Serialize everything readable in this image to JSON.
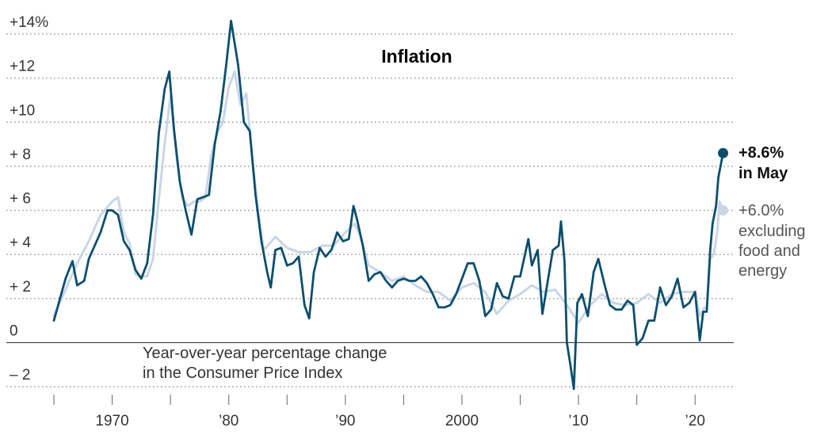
{
  "chart_data": {
    "type": "line",
    "title": "Inflation",
    "subtitle": [
      "Year-over-year percentage change",
      "in the Consumer Price Index"
    ],
    "ylim": [
      -2,
      14
    ],
    "xlim": [
      1965,
      2022.5
    ],
    "y_ticks": [
      {
        "value": 14,
        "label": "+14%"
      },
      {
        "value": 12,
        "label": "+12"
      },
      {
        "value": 10,
        "label": "+10"
      },
      {
        "value": 8,
        "label": "+  8"
      },
      {
        "value": 6,
        "label": "+  6"
      },
      {
        "value": 4,
        "label": "+  4"
      },
      {
        "value": 2,
        "label": "+  2"
      },
      {
        "value": 0,
        "label": "0"
      },
      {
        "value": -2,
        "label": "–  2"
      }
    ],
    "x_ticks": [
      1965,
      1970,
      1975,
      1980,
      1985,
      1990,
      1995,
      2000,
      2005,
      2010,
      2015,
      2020
    ],
    "x_tick_labels": [
      {
        "value": 1970,
        "label": "1970"
      },
      {
        "value": 1980,
        "label": "’80"
      },
      {
        "value": 1990,
        "label": "’90"
      },
      {
        "value": 2000,
        "label": "2000"
      },
      {
        "value": 2010,
        "label": "’10"
      },
      {
        "value": 2020,
        "label": "’20"
      }
    ],
    "series": [
      {
        "name": "Consumer Price Index",
        "color": "#0b4f6c",
        "end_label": [
          "+8.6%",
          "in May"
        ],
        "points": [
          [
            1965.0,
            1.0
          ],
          [
            1966.0,
            2.9
          ],
          [
            1966.6,
            3.7
          ],
          [
            1967.0,
            2.6
          ],
          [
            1967.6,
            2.8
          ],
          [
            1968.0,
            3.8
          ],
          [
            1969.0,
            5.0
          ],
          [
            1969.6,
            6.0
          ],
          [
            1970.0,
            6.0
          ],
          [
            1970.5,
            5.8
          ],
          [
            1971.0,
            4.6
          ],
          [
            1971.5,
            4.2
          ],
          [
            1972.0,
            3.3
          ],
          [
            1972.5,
            2.9
          ],
          [
            1973.0,
            3.6
          ],
          [
            1973.5,
            5.8
          ],
          [
            1974.0,
            9.5
          ],
          [
            1974.5,
            11.5
          ],
          [
            1974.9,
            12.3
          ],
          [
            1975.3,
            9.7
          ],
          [
            1975.8,
            7.3
          ],
          [
            1976.3,
            6.0
          ],
          [
            1976.8,
            4.9
          ],
          [
            1977.3,
            6.5
          ],
          [
            1977.8,
            6.6
          ],
          [
            1978.3,
            6.7
          ],
          [
            1978.8,
            9.0
          ],
          [
            1979.3,
            10.5
          ],
          [
            1979.8,
            12.7
          ],
          [
            1980.2,
            14.6
          ],
          [
            1980.8,
            12.6
          ],
          [
            1981.3,
            10.0
          ],
          [
            1981.8,
            9.6
          ],
          [
            1982.3,
            6.7
          ],
          [
            1982.8,
            4.6
          ],
          [
            1983.3,
            3.2
          ],
          [
            1983.6,
            2.5
          ],
          [
            1984.0,
            4.2
          ],
          [
            1984.5,
            4.3
          ],
          [
            1985.0,
            3.5
          ],
          [
            1985.5,
            3.6
          ],
          [
            1986.0,
            3.9
          ],
          [
            1986.5,
            1.7
          ],
          [
            1986.9,
            1.1
          ],
          [
            1987.3,
            3.2
          ],
          [
            1987.8,
            4.3
          ],
          [
            1988.3,
            3.9
          ],
          [
            1988.8,
            4.2
          ],
          [
            1989.3,
            5.0
          ],
          [
            1989.8,
            4.6
          ],
          [
            1990.3,
            4.7
          ],
          [
            1990.7,
            6.2
          ],
          [
            1991.0,
            5.6
          ],
          [
            1991.5,
            4.4
          ],
          [
            1992.0,
            2.8
          ],
          [
            1992.5,
            3.1
          ],
          [
            1993.0,
            3.2
          ],
          [
            1993.5,
            2.8
          ],
          [
            1994.0,
            2.5
          ],
          [
            1994.5,
            2.8
          ],
          [
            1995.0,
            2.9
          ],
          [
            1995.5,
            2.8
          ],
          [
            1996.0,
            2.8
          ],
          [
            1996.5,
            3.0
          ],
          [
            1997.0,
            2.7
          ],
          [
            1997.5,
            2.2
          ],
          [
            1998.0,
            1.6
          ],
          [
            1998.5,
            1.6
          ],
          [
            1999.0,
            1.7
          ],
          [
            1999.5,
            2.2
          ],
          [
            2000.0,
            2.9
          ],
          [
            2000.5,
            3.6
          ],
          [
            2001.0,
            3.6
          ],
          [
            2001.5,
            2.8
          ],
          [
            2002.0,
            1.2
          ],
          [
            2002.5,
            1.5
          ],
          [
            2003.0,
            2.7
          ],
          [
            2003.5,
            2.1
          ],
          [
            2004.0,
            2.0
          ],
          [
            2004.5,
            3.0
          ],
          [
            2005.0,
            3.0
          ],
          [
            2005.7,
            4.7
          ],
          [
            2006.0,
            3.5
          ],
          [
            2006.5,
            4.2
          ],
          [
            2006.9,
            1.3
          ],
          [
            2007.3,
            2.6
          ],
          [
            2007.8,
            4.2
          ],
          [
            2008.3,
            4.4
          ],
          [
            2008.5,
            5.5
          ],
          [
            2008.8,
            3.7
          ],
          [
            2009.0,
            0.0
          ],
          [
            2009.3,
            -1.0
          ],
          [
            2009.6,
            -2.1
          ],
          [
            2009.9,
            1.8
          ],
          [
            2010.3,
            2.2
          ],
          [
            2010.8,
            1.2
          ],
          [
            2011.3,
            3.2
          ],
          [
            2011.7,
            3.8
          ],
          [
            2012.2,
            2.7
          ],
          [
            2012.7,
            1.7
          ],
          [
            2013.2,
            1.5
          ],
          [
            2013.7,
            1.5
          ],
          [
            2014.2,
            1.9
          ],
          [
            2014.7,
            1.7
          ],
          [
            2015.0,
            -0.1
          ],
          [
            2015.5,
            0.2
          ],
          [
            2016.0,
            1.0
          ],
          [
            2016.5,
            1.0
          ],
          [
            2017.0,
            2.5
          ],
          [
            2017.5,
            1.7
          ],
          [
            2018.0,
            2.1
          ],
          [
            2018.5,
            2.9
          ],
          [
            2019.0,
            1.6
          ],
          [
            2019.5,
            1.8
          ],
          [
            2020.0,
            2.3
          ],
          [
            2020.4,
            0.1
          ],
          [
            2020.7,
            1.4
          ],
          [
            2021.0,
            1.4
          ],
          [
            2021.3,
            4.2
          ],
          [
            2021.5,
            5.4
          ],
          [
            2021.8,
            6.2
          ],
          [
            2022.0,
            7.5
          ],
          [
            2022.4,
            8.6
          ]
        ]
      },
      {
        "name": "excluding food and energy",
        "color": "#c9d6e6",
        "end_label": [
          "+6.0%",
          "excluding",
          "food and",
          "energy"
        ],
        "points": [
          [
            1965.0,
            1.2
          ],
          [
            1966.0,
            2.4
          ],
          [
            1967.0,
            3.6
          ],
          [
            1968.0,
            4.6
          ],
          [
            1969.0,
            5.8
          ],
          [
            1970.0,
            6.4
          ],
          [
            1970.5,
            6.6
          ],
          [
            1971.0,
            5.0
          ],
          [
            1971.5,
            4.5
          ],
          [
            1972.0,
            3.1
          ],
          [
            1972.5,
            3.0
          ],
          [
            1973.0,
            3.0
          ],
          [
            1973.5,
            3.8
          ],
          [
            1974.0,
            6.5
          ],
          [
            1974.5,
            9.0
          ],
          [
            1975.0,
            11.2
          ],
          [
            1975.5,
            8.5
          ],
          [
            1976.0,
            6.6
          ],
          [
            1976.5,
            6.2
          ],
          [
            1977.0,
            6.4
          ],
          [
            1977.5,
            6.4
          ],
          [
            1978.0,
            6.6
          ],
          [
            1978.5,
            8.5
          ],
          [
            1979.0,
            9.5
          ],
          [
            1979.5,
            10.0
          ],
          [
            1980.0,
            11.6
          ],
          [
            1980.5,
            12.3
          ],
          [
            1981.0,
            10.8
          ],
          [
            1981.5,
            11.3
          ],
          [
            1982.0,
            8.5
          ],
          [
            1982.5,
            6.0
          ],
          [
            1983.0,
            4.2
          ],
          [
            1983.5,
            4.5
          ],
          [
            1984.0,
            4.8
          ],
          [
            1985.0,
            4.3
          ],
          [
            1986.0,
            4.1
          ],
          [
            1987.0,
            4.1
          ],
          [
            1988.0,
            4.4
          ],
          [
            1989.0,
            4.4
          ],
          [
            1990.0,
            5.0
          ],
          [
            1990.8,
            5.4
          ],
          [
            1991.3,
            4.8
          ],
          [
            1992.0,
            3.5
          ],
          [
            1993.0,
            3.2
          ],
          [
            1994.0,
            2.8
          ],
          [
            1995.0,
            3.0
          ],
          [
            1996.0,
            2.6
          ],
          [
            1997.0,
            2.3
          ],
          [
            1998.0,
            2.3
          ],
          [
            1999.0,
            1.9
          ],
          [
            2000.0,
            2.5
          ],
          [
            2001.0,
            2.7
          ],
          [
            2002.0,
            2.3
          ],
          [
            2003.0,
            1.3
          ],
          [
            2004.0,
            1.9
          ],
          [
            2005.0,
            2.2
          ],
          [
            2006.0,
            2.6
          ],
          [
            2007.0,
            2.3
          ],
          [
            2008.0,
            2.4
          ],
          [
            2009.0,
            1.7
          ],
          [
            2010.0,
            0.9
          ],
          [
            2011.0,
            1.7
          ],
          [
            2012.0,
            2.2
          ],
          [
            2013.0,
            1.8
          ],
          [
            2014.0,
            1.7
          ],
          [
            2015.0,
            1.8
          ],
          [
            2016.0,
            2.2
          ],
          [
            2017.0,
            1.8
          ],
          [
            2018.0,
            2.2
          ],
          [
            2019.0,
            2.3
          ],
          [
            2020.0,
            2.3
          ],
          [
            2020.4,
            1.2
          ],
          [
            2020.8,
            1.6
          ],
          [
            2021.0,
            1.5
          ],
          [
            2021.3,
            3.8
          ],
          [
            2021.6,
            4.0
          ],
          [
            2021.9,
            5.0
          ],
          [
            2022.1,
            6.4
          ],
          [
            2022.4,
            6.0
          ]
        ]
      }
    ]
  }
}
